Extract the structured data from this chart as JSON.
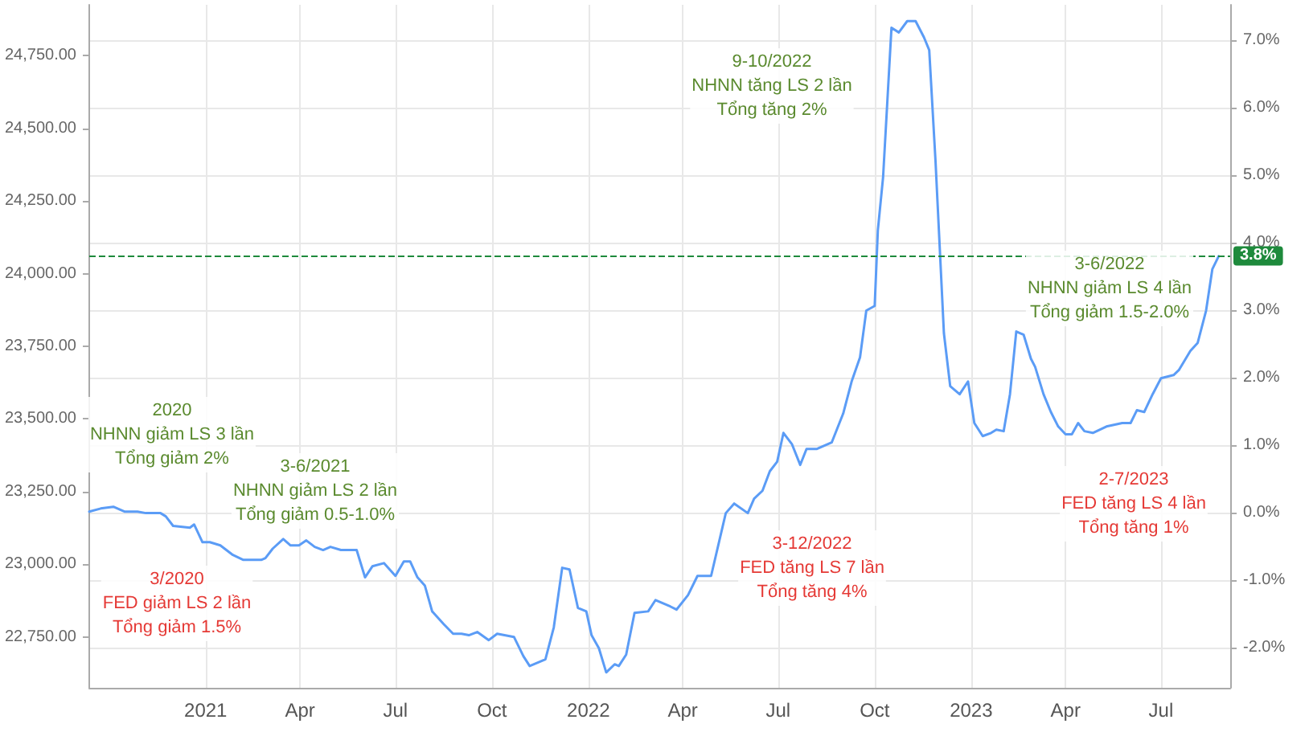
{
  "chart_data": {
    "type": "line",
    "marker": "none",
    "line_style": "solid",
    "grid": true,
    "x": [
      "2020-09-12",
      "2020-09-23",
      "2020-10-05",
      "2020-10-16",
      "2020-10-28",
      "2020-11-05",
      "2020-11-19",
      "2020-11-24",
      "2020-12-01",
      "2020-12-17",
      "2020-12-21",
      "2020-12-29",
      "2021-01-05",
      "2021-01-15",
      "2021-01-27",
      "2021-02-06",
      "2021-02-23",
      "2021-02-27",
      "2021-03-06",
      "2021-03-16",
      "2021-03-23",
      "2021-03-31",
      "2021-04-07",
      "2021-04-15",
      "2021-04-23",
      "2021-04-30",
      "2021-05-10",
      "2021-05-25",
      "2021-06-02",
      "2021-06-09",
      "2021-06-20",
      "2021-07-01",
      "2021-07-09",
      "2021-07-15",
      "2021-07-22",
      "2021-07-29",
      "2021-08-05",
      "2021-08-16",
      "2021-08-25",
      "2021-09-02",
      "2021-09-09",
      "2021-09-17",
      "2021-09-28",
      "2021-10-06",
      "2021-10-22",
      "2021-10-31",
      "2021-11-06",
      "2021-11-21",
      "2021-11-29",
      "2021-12-07",
      "2021-12-14",
      "2021-12-22",
      "2021-12-30",
      "2022-01-04",
      "2022-01-11",
      "2022-01-18",
      "2022-01-26",
      "2022-01-30",
      "2022-02-06",
      "2022-02-14",
      "2022-02-27",
      "2022-03-06",
      "2022-03-20",
      "2022-03-26",
      "2022-04-06",
      "2022-04-15",
      "2022-04-28",
      "2022-05-12",
      "2022-05-20",
      "2022-06-02",
      "2022-06-08",
      "2022-06-16",
      "2022-06-23",
      "2022-06-30",
      "2022-07-06",
      "2022-07-14",
      "2022-07-22",
      "2022-07-28",
      "2022-08-07",
      "2022-08-21",
      "2022-09-01",
      "2022-09-09",
      "2022-09-17",
      "2022-09-23",
      "2022-10-01",
      "2022-10-04",
      "2022-10-09",
      "2022-10-17",
      "2022-10-24",
      "2022-11-01",
      "2022-11-09",
      "2022-11-17",
      "2022-11-22",
      "2022-11-28",
      "2022-12-06",
      "2022-12-12",
      "2022-12-21",
      "2022-12-29",
      "2023-01-04",
      "2023-01-12",
      "2023-01-20",
      "2023-01-25",
      "2023-02-01",
      "2023-02-07",
      "2023-02-13",
      "2023-02-20",
      "2023-02-27",
      "2023-03-03",
      "2023-03-11",
      "2023-03-18",
      "2023-03-25",
      "2023-04-01",
      "2023-04-07",
      "2023-04-13",
      "2023-04-19",
      "2023-04-27",
      "2023-05-10",
      "2023-05-25",
      "2023-06-02",
      "2023-06-08",
      "2023-06-15",
      "2023-06-23",
      "2023-07-01",
      "2023-07-13",
      "2023-07-18",
      "2023-07-29",
      "2023-08-05",
      "2023-08-13",
      "2023-08-19",
      "2023-08-25"
    ],
    "series": [
      {
        "color": "#5b9cf6",
        "values": [
          23181,
          23192,
          23198,
          23181,
          23181,
          23176,
          23176,
          23165,
          23132,
          23126,
          23137,
          23076,
          23076,
          23065,
          23032,
          23015,
          23015,
          23021,
          23054,
          23087,
          23065,
          23065,
          23082,
          23060,
          23049,
          23060,
          23049,
          23049,
          22955,
          22993,
          23004,
          22960,
          23010,
          23010,
          22955,
          22927,
          22838,
          22794,
          22761,
          22761,
          22756,
          22767,
          22739,
          22761,
          22750,
          22684,
          22650,
          22673,
          22783,
          22988,
          22982,
          22850,
          22838,
          22756,
          22711,
          22628,
          22656,
          22650,
          22689,
          22833,
          22838,
          22877,
          22855,
          22844,
          22894,
          22960,
          22960,
          23176,
          23209,
          23176,
          23226,
          23253,
          23320,
          23353,
          23452,
          23414,
          23342,
          23397,
          23397,
          23419,
          23519,
          23629,
          23712,
          23873,
          23889,
          24149,
          24332,
          24846,
          24830,
          24869,
          24869,
          24813,
          24769,
          24387,
          23795,
          23613,
          23585,
          23629,
          23486,
          23441,
          23452,
          23463,
          23458,
          23585,
          23801,
          23790,
          23707,
          23679,
          23585,
          23524,
          23474,
          23447,
          23447,
          23486,
          23458,
          23452,
          23474,
          23486,
          23486,
          23530,
          23524,
          23585,
          23640,
          23651,
          23668,
          23734,
          23762,
          23873,
          24016,
          24060
        ]
      }
    ],
    "xlim": [
      "2020-09-12",
      "2023-09-05"
    ],
    "xticks": [
      {
        "value": "2021-01-01",
        "label": "2021"
      },
      {
        "value": "2021-04-01",
        "label": "Apr"
      },
      {
        "value": "2021-07-01",
        "label": "Jul"
      },
      {
        "value": "2021-10-01",
        "label": "Oct"
      },
      {
        "value": "2022-01-01",
        "label": "2022"
      },
      {
        "value": "2022-04-01",
        "label": "Apr"
      },
      {
        "value": "2022-07-01",
        "label": "Jul"
      },
      {
        "value": "2022-10-01",
        "label": "Oct"
      },
      {
        "value": "2023-01-01",
        "label": "2023"
      },
      {
        "value": "2023-04-01",
        "label": "Apr"
      },
      {
        "value": "2023-07-01",
        "label": "Jul"
      }
    ],
    "ylim": [
      22575,
      24925
    ],
    "yticks": [
      {
        "value": 22750,
        "label": "22,750.00"
      },
      {
        "value": 23000,
        "label": "23,000.00"
      },
      {
        "value": 23250,
        "label": "23,250.00"
      },
      {
        "value": 23500,
        "label": "23,500.00"
      },
      {
        "value": 23750,
        "label": "23,750.00"
      },
      {
        "value": 24000,
        "label": "24,000.00"
      },
      {
        "value": 24250,
        "label": "24,250.00"
      },
      {
        "value": 24500,
        "label": "24,500.00"
      },
      {
        "value": 24750,
        "label": "24,750.00"
      }
    ],
    "y2lim": [
      -2.6,
      7.52
    ],
    "y2ticks": [
      {
        "value": -2,
        "label": "-2.0%"
      },
      {
        "value": -1,
        "label": "-1.0%"
      },
      {
        "value": 0,
        "label": "0.0%"
      },
      {
        "value": 1,
        "label": "1.0%"
      },
      {
        "value": 2,
        "label": "2.0%"
      },
      {
        "value": 3,
        "label": "3.0%"
      },
      {
        "value": 4,
        "label": "4.0%"
      },
      {
        "value": 5,
        "label": "5.0%"
      },
      {
        "value": 6,
        "label": "6.0%"
      },
      {
        "value": 7,
        "label": "7.0%"
      }
    ],
    "ref_lines": [
      {
        "axis": "y2",
        "value": 3.8,
        "label": "3.8%",
        "color": "#1e8a3c",
        "line_style": "dashed"
      }
    ],
    "annotations": [
      "2020\nNHNN giảm LS 3 lần\nTổng giảm 2%",
      "3/2020\nFED giảm LS 2 lần\nTổng giảm 1.5%",
      "3-6/2021\nNHNN giảm LS 2 lần\nTổng giảm 0.5-1.0%",
      "9-10/2022\nNHNN tăng LS 2 lần\nTổng tăng 2%",
      "3-12/2022\nFED tăng LS 7 lần\nTổng tăng 4%",
      "3-6/2022\nNHNN giảm LS 4 lần\nTổng giảm 1.5-2.0%",
      "2-7/2023\nFED tăng LS 4 lần\nTổng tăng 1%"
    ]
  }
}
